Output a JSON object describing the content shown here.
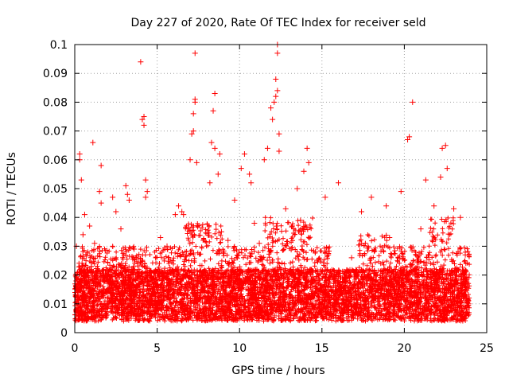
{
  "chart_data": {
    "type": "scatter",
    "title": "Day 227 of 2020, Rate Of TEC Index for receiver seld",
    "xlabel": "GPS time / hours",
    "ylabel": "ROTI / TECUs",
    "xlim": [
      0,
      25
    ],
    "ylim": [
      0,
      0.1
    ],
    "xticks": [
      0,
      5,
      10,
      15,
      20,
      25
    ],
    "xtick_labels": [
      "0",
      "5",
      "10",
      "15",
      "20",
      "25"
    ],
    "yticks": [
      0,
      0.01,
      0.02,
      0.03,
      0.04,
      0.05,
      0.06,
      0.07,
      0.08,
      0.09,
      0.1
    ],
    "ytick_labels": [
      "0",
      "0.01",
      "0.02",
      "0.03",
      "0.04",
      "0.05",
      "0.06",
      "0.07",
      "0.08",
      "0.09",
      "0.1"
    ],
    "grid": true,
    "marker": "plus",
    "color": "#ff0000",
    "series": [
      {
        "name": "ROTI",
        "x": [
          0.1,
          0.3,
          0.3,
          0.4,
          0.6,
          0.9,
          1.1,
          1.5,
          1.6,
          1.6,
          2.3,
          2.5,
          3.1,
          3.2,
          3.3,
          4.0,
          4.1,
          4.2,
          4.2,
          4.3,
          4.3,
          4.4,
          6.1,
          6.3,
          6.5,
          6.6,
          7.0,
          7.1,
          7.2,
          7.2,
          7.3,
          7.3,
          7.3,
          7.4,
          8.2,
          8.3,
          8.4,
          8.5,
          8.5,
          8.7,
          8.8,
          9.7,
          10.1,
          10.3,
          10.6,
          10.7,
          11.5,
          11.7,
          11.9,
          12.0,
          12.1,
          12.2,
          12.2,
          12.3,
          12.3,
          12.3,
          12.4,
          12.4,
          12.8,
          13.5,
          13.9,
          14.1,
          14.2,
          15.2,
          16.0,
          17.4,
          18.0,
          18.9,
          19.8,
          20.2,
          20.3,
          20.5,
          21.3,
          21.8,
          22.2,
          22.3,
          22.5,
          22.6,
          23.0,
          23.4,
          0.5,
          1.2,
          2.8,
          3.6,
          5.2,
          5.6,
          8.9,
          9.3,
          10.9,
          11.2,
          13.2,
          13.7,
          14.6,
          16.8,
          17.8,
          19.1,
          21.0,
          23.7,
          0.7,
          2.0,
          3.8,
          5.9,
          6.8,
          9.5,
          11.8,
          13.0,
          14.9,
          15.8,
          17.1,
          18.5,
          19.4,
          20.7,
          21.6,
          22.9,
          23.9
        ],
        "values": [
          0.03,
          0.062,
          0.06,
          0.053,
          0.041,
          0.037,
          0.066,
          0.049,
          0.058,
          0.045,
          0.047,
          0.042,
          0.051,
          0.048,
          0.046,
          0.094,
          0.074,
          0.075,
          0.072,
          0.053,
          0.047,
          0.049,
          0.041,
          0.044,
          0.042,
          0.041,
          0.06,
          0.069,
          0.076,
          0.07,
          0.097,
          0.081,
          0.08,
          0.059,
          0.052,
          0.066,
          0.077,
          0.083,
          0.064,
          0.055,
          0.062,
          0.046,
          0.057,
          0.062,
          0.055,
          0.052,
          0.06,
          0.064,
          0.078,
          0.074,
          0.08,
          0.082,
          0.088,
          0.1,
          0.097,
          0.084,
          0.063,
          0.069,
          0.043,
          0.05,
          0.056,
          0.064,
          0.059,
          0.047,
          0.052,
          0.042,
          0.047,
          0.044,
          0.049,
          0.067,
          0.068,
          0.08,
          0.053,
          0.044,
          0.054,
          0.064,
          0.065,
          0.057,
          0.043,
          0.04,
          0.034,
          0.031,
          0.036,
          0.029,
          0.033,
          0.03,
          0.035,
          0.032,
          0.038,
          0.031,
          0.037,
          0.039,
          0.028,
          0.026,
          0.03,
          0.033,
          0.036,
          0.027,
          0.012,
          0.015,
          0.01,
          0.013,
          0.016,
          0.011,
          0.014,
          0.017,
          0.009,
          0.01,
          0.012,
          0.011,
          0.015,
          0.013,
          0.016,
          0.014,
          0.01
        ]
      }
    ]
  }
}
